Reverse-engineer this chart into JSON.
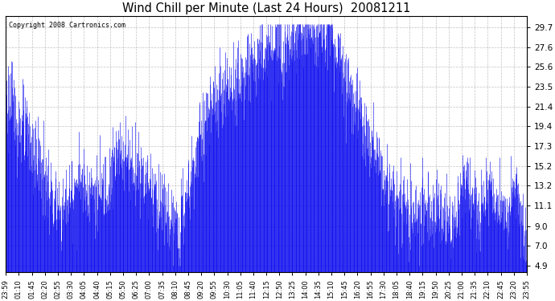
{
  "title": "Wind Chill per Minute (Last 24 Hours)  20081211",
  "copyright": "Copyright 2008 Cartronics.com",
  "line_color": "#0000ee",
  "bg_color": "#ffffff",
  "grid_color": "#bbbbbb",
  "yticks": [
    4.9,
    7.0,
    9.0,
    11.1,
    13.2,
    15.2,
    17.3,
    19.4,
    21.4,
    23.5,
    25.6,
    27.6,
    29.7
  ],
  "ylim": [
    4.2,
    30.8
  ],
  "xtick_labels": [
    "23:59",
    "01:10",
    "01:45",
    "02:20",
    "02:55",
    "03:30",
    "04:05",
    "04:40",
    "05:15",
    "05:50",
    "06:25",
    "07:00",
    "07:35",
    "08:10",
    "08:45",
    "09:20",
    "09:55",
    "10:30",
    "11:05",
    "11:40",
    "12:15",
    "12:50",
    "13:25",
    "14:00",
    "14:35",
    "15:10",
    "15:45",
    "16:20",
    "16:55",
    "17:30",
    "18:05",
    "18:40",
    "19:15",
    "19:50",
    "20:25",
    "21:00",
    "21:35",
    "22:10",
    "22:45",
    "23:20",
    "23:55"
  ],
  "n_points": 1441,
  "figsize": [
    6.9,
    3.75
  ],
  "dpi": 100
}
